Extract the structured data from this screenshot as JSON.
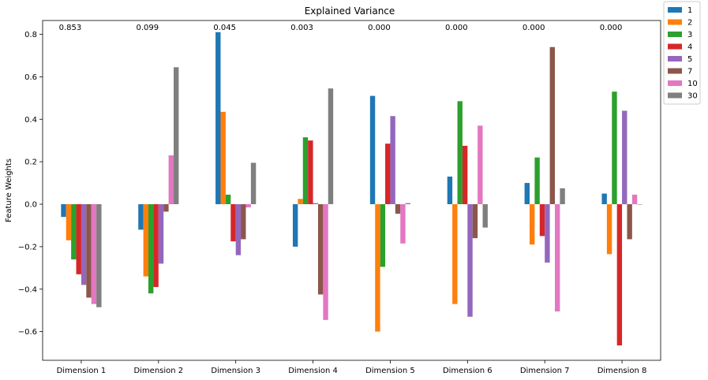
{
  "chart_data": {
    "type": "bar",
    "title": "Explained Variance",
    "ylabel": "Feature Weights",
    "xlabel": "",
    "ylim": [
      -0.735,
      0.865
    ],
    "yticks": [
      "0.8",
      "0.6",
      "0.4",
      "0.2",
      "0.0",
      "−0.2",
      "−0.4",
      "−0.6"
    ],
    "ytick_values": [
      0.8,
      0.6,
      0.4,
      0.2,
      0.0,
      -0.2,
      -0.4,
      -0.6
    ],
    "categories": [
      "Dimension 1",
      "Dimension 2",
      "Dimension 3",
      "Dimension 4",
      "Dimension 5",
      "Dimension 6",
      "Dimension 7",
      "Dimension 8"
    ],
    "explained_variance": [
      "0.853",
      "0.099",
      "0.045",
      "0.003",
      "0.000",
      "0.000",
      "0.000",
      "0.000"
    ],
    "legend_position": "outside-top-right",
    "grid": false,
    "series": [
      {
        "name": "1",
        "color": "#1f77b4",
        "values": [
          -0.06,
          -0.12,
          0.81,
          -0.2,
          0.51,
          0.13,
          0.1,
          0.05
        ]
      },
      {
        "name": "2",
        "color": "#ff7f0e",
        "values": [
          -0.17,
          -0.34,
          0.435,
          0.025,
          -0.6,
          -0.47,
          -0.19,
          -0.235
        ]
      },
      {
        "name": "3",
        "color": "#2ca02c",
        "values": [
          -0.26,
          -0.42,
          0.045,
          0.315,
          -0.295,
          0.485,
          0.22,
          0.53
        ]
      },
      {
        "name": "4",
        "color": "#d62728",
        "values": [
          -0.33,
          -0.39,
          -0.175,
          0.3,
          0.285,
          0.275,
          -0.15,
          -0.665
        ]
      },
      {
        "name": "5",
        "color": "#9467bd",
        "values": [
          -0.38,
          -0.28,
          -0.24,
          0.005,
          0.415,
          -0.53,
          -0.275,
          0.44
        ]
      },
      {
        "name": "7",
        "color": "#8c564b",
        "values": [
          -0.44,
          -0.035,
          -0.165,
          -0.425,
          -0.045,
          -0.16,
          0.74,
          -0.165
        ]
      },
      {
        "name": "10",
        "color": "#e377c2",
        "values": [
          -0.47,
          0.23,
          -0.015,
          -0.545,
          -0.185,
          0.37,
          -0.505,
          0.045
        ]
      },
      {
        "name": "30",
        "color": "#7f7f7f",
        "values": [
          -0.485,
          0.645,
          0.195,
          0.545,
          0.005,
          -0.11,
          0.075,
          0.0
        ]
      }
    ]
  }
}
